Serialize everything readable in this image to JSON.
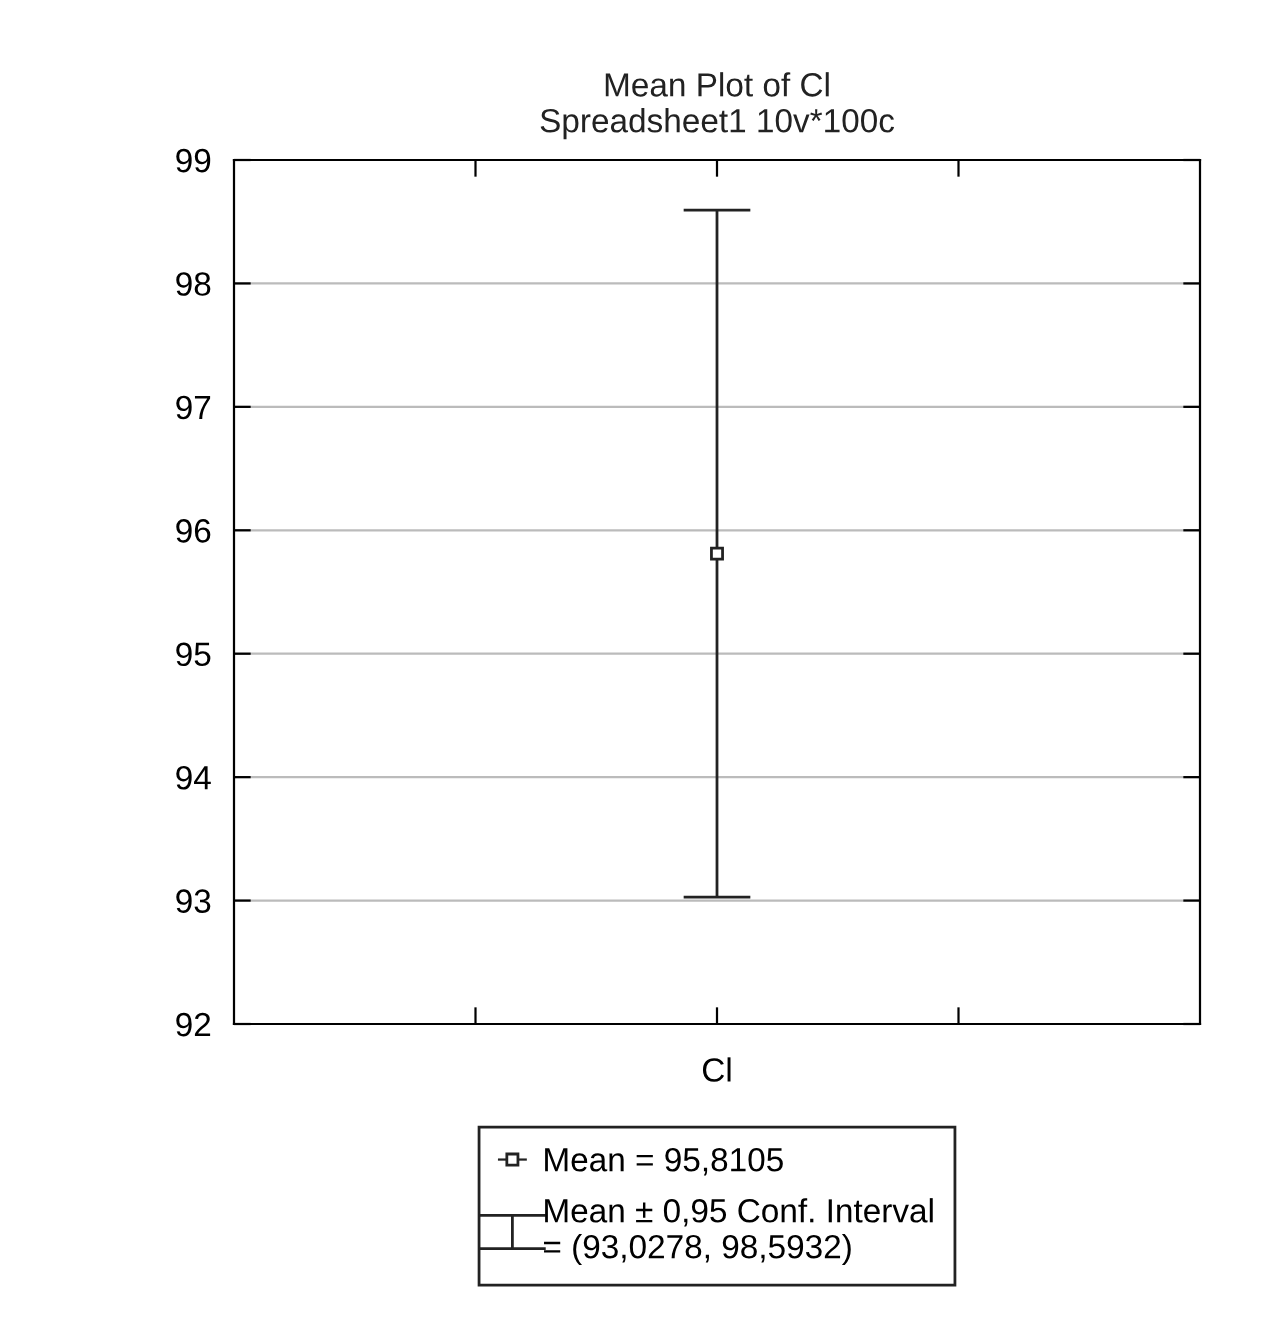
{
  "chart_data": {
    "type": "scatter",
    "title": "Mean Plot of Cl\nSpreadsheet1 10v*100c",
    "categories": [
      "Cl"
    ],
    "series": [
      {
        "name": "Mean = 95,8105",
        "color": "#222222",
        "values": [
          95.8105
        ],
        "errors": [
          [
            93.0278,
            98.5932
          ]
        ]
      }
    ],
    "annotations": [
      "Mean ± 0,95 Conf. Interval\n= (93,0278, 98,5932)"
    ],
    "ylim": [
      92,
      99
    ],
    "yticks": [
      92,
      93,
      94,
      95,
      96,
      97,
      98,
      99
    ],
    "grid": "y",
    "legend": "bottom",
    "marker": "square"
  }
}
